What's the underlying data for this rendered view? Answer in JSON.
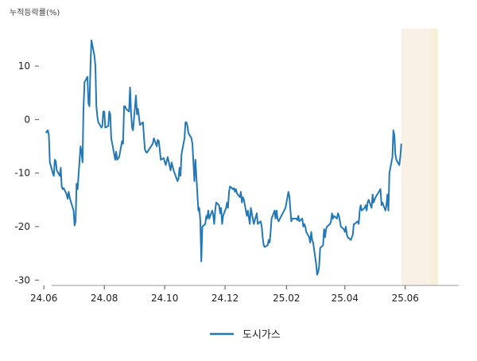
{
  "chart_data": {
    "type": "line",
    "ylabel": "누적등락률(%)",
    "ylim": [
      -31,
      17
    ],
    "yticks": [
      10,
      0,
      -10,
      -20,
      -30
    ],
    "xlim": [
      "2024-05-27",
      "2025-07-25"
    ],
    "xticks": [
      {
        "label": "24.06",
        "date": "2024-06-01"
      },
      {
        "label": "24.08",
        "date": "2024-08-01"
      },
      {
        "label": "24.10",
        "date": "2024-10-01"
      },
      {
        "label": "24.12",
        "date": "2024-12-01"
      },
      {
        "label": "25.02",
        "date": "2025-02-01"
      },
      {
        "label": "25.04",
        "date": "2025-04-01"
      },
      {
        "label": "25.06",
        "date": "2025-06-01"
      }
    ],
    "highlight_bands": [
      {
        "start": "2025-05-28",
        "end": "2025-06-26",
        "color": "#FAF1E6"
      },
      {
        "start": "2025-06-26",
        "end": "2025-07-04",
        "color": "#F7F0D9"
      }
    ],
    "series": [
      {
        "name": "도시가스",
        "color": "#2378B5",
        "points": [
          [
            "2024-06-03",
            -2.5
          ],
          [
            "2024-06-04",
            -2.2
          ],
          [
            "2024-06-05",
            -2.0
          ],
          [
            "2024-06-06",
            -3.0
          ],
          [
            "2024-06-07",
            -8.0
          ],
          [
            "2024-06-10",
            -10.0
          ],
          [
            "2024-06-11",
            -10.5
          ],
          [
            "2024-06-12",
            -7.5
          ],
          [
            "2024-06-13",
            -7.8
          ],
          [
            "2024-06-14",
            -9.5
          ],
          [
            "2024-06-17",
            -10.5
          ],
          [
            "2024-06-18",
            -9.0
          ],
          [
            "2024-06-19",
            -12.5
          ],
          [
            "2024-06-20",
            -13.0
          ],
          [
            "2024-06-21",
            -12.8
          ],
          [
            "2024-06-24",
            -14.0
          ],
          [
            "2024-06-25",
            -14.8
          ],
          [
            "2024-06-26",
            -13.5
          ],
          [
            "2024-06-27",
            -14.5
          ],
          [
            "2024-06-28",
            -15.2
          ],
          [
            "2024-07-01",
            -17.0
          ],
          [
            "2024-07-02",
            -19.8
          ],
          [
            "2024-07-03",
            -19.0
          ],
          [
            "2024-07-04",
            -12.0
          ],
          [
            "2024-07-05",
            -13.0
          ],
          [
            "2024-07-08",
            -5.0
          ],
          [
            "2024-07-09",
            -6.0
          ],
          [
            "2024-07-10",
            -8.0
          ],
          [
            "2024-07-11",
            2.0
          ],
          [
            "2024-07-12",
            7.0
          ],
          [
            "2024-07-15",
            8.0
          ],
          [
            "2024-07-16",
            3.0
          ],
          [
            "2024-07-17",
            2.5
          ],
          [
            "2024-07-18",
            10.0
          ],
          [
            "2024-07-19",
            14.8
          ],
          [
            "2024-07-22",
            12.0
          ],
          [
            "2024-07-23",
            10.0
          ],
          [
            "2024-07-24",
            2.5
          ],
          [
            "2024-07-25",
            0.5
          ],
          [
            "2024-07-26",
            -0.5
          ],
          [
            "2024-07-29",
            -1.5
          ],
          [
            "2024-07-30",
            -1.2
          ],
          [
            "2024-07-31",
            1.5
          ],
          [
            "2024-08-01",
            1.5
          ],
          [
            "2024-08-02",
            -1.5
          ],
          [
            "2024-08-05",
            -1.2
          ],
          [
            "2024-08-06",
            1.5
          ],
          [
            "2024-08-07",
            1.0
          ],
          [
            "2024-08-08",
            -3.5
          ],
          [
            "2024-08-09",
            -4.5
          ],
          [
            "2024-08-12",
            -7.5
          ],
          [
            "2024-08-13",
            -6.0
          ],
          [
            "2024-08-14",
            -7.5
          ],
          [
            "2024-08-16",
            -7.0
          ],
          [
            "2024-08-19",
            -4.0
          ],
          [
            "2024-08-20",
            -4.5
          ],
          [
            "2024-08-21",
            2.5
          ],
          [
            "2024-08-22",
            2.5
          ],
          [
            "2024-08-23",
            2.0
          ],
          [
            "2024-08-26",
            1.5
          ],
          [
            "2024-08-27",
            6.0
          ],
          [
            "2024-08-28",
            1.5
          ],
          [
            "2024-08-29",
            -1.5
          ],
          [
            "2024-08-30",
            -2.0
          ],
          [
            "2024-09-02",
            4.5
          ],
          [
            "2024-09-03",
            1.0
          ],
          [
            "2024-09-04",
            2.0
          ],
          [
            "2024-09-05",
            0.5
          ],
          [
            "2024-09-06",
            -1.0
          ],
          [
            "2024-09-09",
            -0.5
          ],
          [
            "2024-09-10",
            -3.0
          ],
          [
            "2024-09-11",
            -5.5
          ],
          [
            "2024-09-12",
            -6.0
          ],
          [
            "2024-09-13",
            -6.2
          ],
          [
            "2024-09-19",
            -4.5
          ],
          [
            "2024-09-20",
            -3.5
          ],
          [
            "2024-09-23",
            -5.0
          ],
          [
            "2024-09-24",
            -3.8
          ],
          [
            "2024-09-25",
            -4.0
          ],
          [
            "2024-09-26",
            -5.5
          ],
          [
            "2024-09-27",
            -7.5
          ],
          [
            "2024-09-30",
            -7.2
          ],
          [
            "2024-10-02",
            -8.5
          ],
          [
            "2024-10-04",
            -7.0
          ],
          [
            "2024-10-07",
            -9.5
          ],
          [
            "2024-10-08",
            -8.0
          ],
          [
            "2024-10-10",
            -9.5
          ],
          [
            "2024-10-11",
            -10.0
          ],
          [
            "2024-10-14",
            -11.5
          ],
          [
            "2024-10-15",
            -11.0
          ],
          [
            "2024-10-16",
            -9.0
          ],
          [
            "2024-10-17",
            -10.5
          ],
          [
            "2024-10-18",
            -6.5
          ],
          [
            "2024-10-21",
            -3.5
          ],
          [
            "2024-10-22",
            -0.5
          ],
          [
            "2024-10-23",
            -0.5
          ],
          [
            "2024-10-24",
            -1.2
          ],
          [
            "2024-10-25",
            -2.5
          ],
          [
            "2024-10-28",
            -3.5
          ],
          [
            "2024-10-29",
            -4.5
          ],
          [
            "2024-10-30",
            -8.0
          ],
          [
            "2024-10-31",
            -11.5
          ],
          [
            "2024-11-01",
            -7.5
          ],
          [
            "2024-11-04",
            -17.0
          ],
          [
            "2024-11-05",
            -16.5
          ],
          [
            "2024-11-06",
            -19.0
          ],
          [
            "2024-11-07",
            -26.5
          ],
          [
            "2024-11-08",
            -20.0
          ],
          [
            "2024-11-11",
            -19.5
          ],
          [
            "2024-11-12",
            -18.0
          ],
          [
            "2024-11-13",
            -18.5
          ],
          [
            "2024-11-14",
            -17.0
          ],
          [
            "2024-11-15",
            -18.5
          ],
          [
            "2024-11-18",
            -17.0
          ],
          [
            "2024-11-19",
            -17.8
          ],
          [
            "2024-11-20",
            -19.5
          ],
          [
            "2024-11-21",
            -17.0
          ],
          [
            "2024-11-22",
            -15.5
          ],
          [
            "2024-11-25",
            -16.0
          ],
          [
            "2024-11-26",
            -17.5
          ],
          [
            "2024-11-27",
            -16.5
          ],
          [
            "2024-11-28",
            -19.5
          ],
          [
            "2024-11-29",
            -18.0
          ],
          [
            "2024-12-02",
            -16.5
          ],
          [
            "2024-12-03",
            -15.5
          ],
          [
            "2024-12-04",
            -16.5
          ],
          [
            "2024-12-05",
            -13.5
          ],
          [
            "2024-12-06",
            -12.5
          ],
          [
            "2024-12-09",
            -13.0
          ],
          [
            "2024-12-10",
            -12.8
          ],
          [
            "2024-12-11",
            -13.5
          ],
          [
            "2024-12-12",
            -13.0
          ],
          [
            "2024-12-13",
            -13.8
          ],
          [
            "2024-12-16",
            -14.5
          ],
          [
            "2024-12-17",
            -13.5
          ],
          [
            "2024-12-18",
            -15.5
          ],
          [
            "2024-12-19",
            -14.5
          ],
          [
            "2024-12-20",
            -15.0
          ],
          [
            "2024-12-23",
            -18.0
          ],
          [
            "2024-12-24",
            -17.0
          ],
          [
            "2024-12-26",
            -19.5
          ],
          [
            "2024-12-27",
            -16.5
          ],
          [
            "2024-12-30",
            -19.5
          ],
          [
            "2025-01-02",
            -17.5
          ],
          [
            "2025-01-03",
            -19.5
          ],
          [
            "2025-01-06",
            -19.0
          ],
          [
            "2025-01-07",
            -20.0
          ],
          [
            "2025-01-08",
            -22.0
          ],
          [
            "2025-01-09",
            -23.5
          ],
          [
            "2025-01-10",
            -23.8
          ],
          [
            "2025-01-13",
            -23.5
          ],
          [
            "2025-01-14",
            -22.5
          ],
          [
            "2025-01-15",
            -23.0
          ],
          [
            "2025-01-16",
            -21.0
          ],
          [
            "2025-01-17",
            -18.5
          ],
          [
            "2025-01-20",
            -17.0
          ],
          [
            "2025-01-21",
            -18.5
          ],
          [
            "2025-01-22",
            -17.0
          ],
          [
            "2025-01-23",
            -18.5
          ],
          [
            "2025-01-24",
            -19.0
          ],
          [
            "2025-01-31",
            -16.5
          ],
          [
            "2025-02-03",
            -13.5
          ],
          [
            "2025-02-04",
            -14.5
          ],
          [
            "2025-02-05",
            -17.0
          ],
          [
            "2025-02-06",
            -19.0
          ],
          [
            "2025-02-07",
            -18.5
          ],
          [
            "2025-02-10",
            -18.5
          ],
          [
            "2025-02-11",
            -18.5
          ],
          [
            "2025-02-12",
            -18.8
          ],
          [
            "2025-02-13",
            -18.0
          ],
          [
            "2025-02-14",
            -19.0
          ],
          [
            "2025-02-17",
            -18.5
          ],
          [
            "2025-02-18",
            -20.0
          ],
          [
            "2025-02-19",
            -19.5
          ],
          [
            "2025-02-20",
            -20.0
          ],
          [
            "2025-02-21",
            -21.0
          ],
          [
            "2025-02-24",
            -22.0
          ],
          [
            "2025-02-25",
            -23.0
          ],
          [
            "2025-02-26",
            -21.0
          ],
          [
            "2025-02-27",
            -22.5
          ],
          [
            "2025-02-28",
            -23.0
          ],
          [
            "2025-03-03",
            -27.0
          ],
          [
            "2025-03-04",
            -29.0
          ],
          [
            "2025-03-05",
            -28.5
          ],
          [
            "2025-03-06",
            -27.5
          ],
          [
            "2025-03-07",
            -24.0
          ],
          [
            "2025-03-10",
            -23.5
          ],
          [
            "2025-03-11",
            -20.5
          ],
          [
            "2025-03-12",
            -22.0
          ],
          [
            "2025-03-13",
            -20.5
          ],
          [
            "2025-03-14",
            -20.0
          ],
          [
            "2025-03-17",
            -19.5
          ],
          [
            "2025-03-18",
            -19.0
          ],
          [
            "2025-03-19",
            -17.5
          ],
          [
            "2025-03-20",
            -18.5
          ],
          [
            "2025-03-21",
            -18.0
          ],
          [
            "2025-03-24",
            -18.5
          ],
          [
            "2025-03-25",
            -17.5
          ],
          [
            "2025-03-26",
            -18.0
          ],
          [
            "2025-03-27",
            -19.0
          ],
          [
            "2025-03-28",
            -20.0
          ],
          [
            "2025-03-31",
            -20.5
          ],
          [
            "2025-04-01",
            -21.0
          ],
          [
            "2025-04-02",
            -20.0
          ],
          [
            "2025-04-03",
            -21.5
          ],
          [
            "2025-04-04",
            -22.0
          ],
          [
            "2025-04-07",
            -22.5
          ],
          [
            "2025-04-08",
            -22.0
          ],
          [
            "2025-04-09",
            -21.5
          ],
          [
            "2025-04-10",
            -19.5
          ],
          [
            "2025-04-11",
            -19.5
          ],
          [
            "2025-04-14",
            -19.0
          ],
          [
            "2025-04-15",
            -19.5
          ],
          [
            "2025-04-16",
            -17.0
          ],
          [
            "2025-04-17",
            -16.0
          ],
          [
            "2025-04-18",
            -17.0
          ],
          [
            "2025-04-21",
            -16.5
          ],
          [
            "2025-04-22",
            -16.0
          ],
          [
            "2025-04-23",
            -17.0
          ],
          [
            "2025-04-24",
            -15.5
          ],
          [
            "2025-04-25",
            -15.0
          ],
          [
            "2025-04-28",
            -16.5
          ],
          [
            "2025-04-29",
            -14.0
          ],
          [
            "2025-04-30",
            -15.5
          ],
          [
            "2025-05-02",
            -14.5
          ],
          [
            "2025-05-07",
            -13.0
          ],
          [
            "2025-05-08",
            -16.0
          ],
          [
            "2025-05-09",
            -15.5
          ],
          [
            "2025-05-12",
            -17.0
          ],
          [
            "2025-05-13",
            -16.0
          ],
          [
            "2025-05-14",
            -14.0
          ],
          [
            "2025-05-15",
            -17.0
          ],
          [
            "2025-05-16",
            -10.0
          ],
          [
            "2025-05-19",
            -7.0
          ],
          [
            "2025-05-20",
            -2.0
          ],
          [
            "2025-05-21",
            -3.0
          ],
          [
            "2025-05-22",
            -6.5
          ],
          [
            "2025-05-23",
            -7.5
          ],
          [
            "2025-05-26",
            -8.5
          ],
          [
            "2025-05-27",
            -7.0
          ],
          [
            "2025-05-28",
            -4.5
          ]
        ]
      }
    ]
  }
}
